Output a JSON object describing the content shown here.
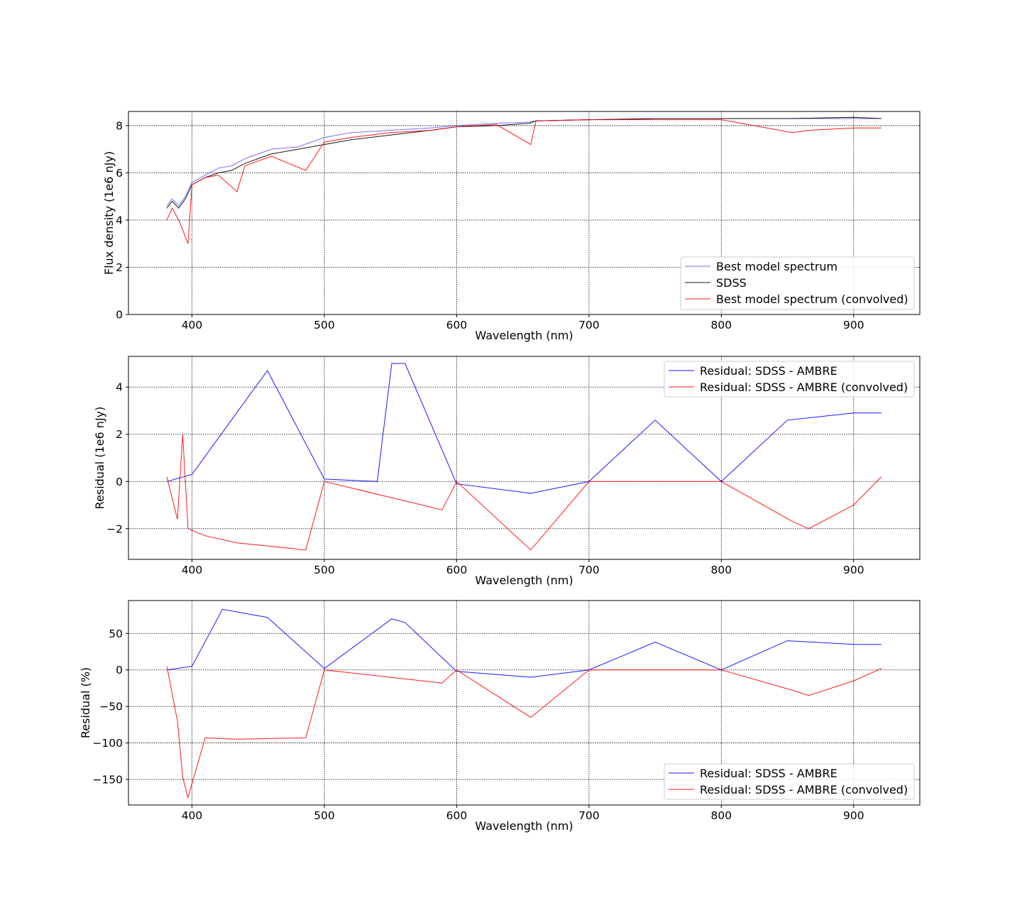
{
  "chart_data": [
    {
      "type": "line",
      "xlabel": "Wavelength (nm)",
      "ylabel": "Flux density (1e6 nJy)",
      "xlim": [
        352,
        950
      ],
      "ylim": [
        0,
        8.6
      ],
      "xticks": [
        400,
        500,
        600,
        700,
        800,
        900
      ],
      "yticks": [
        0,
        2,
        4,
        6,
        8
      ],
      "grid": true,
      "legend_position": "lower-right",
      "series": [
        {
          "name": "Best model spectrum",
          "color": "#0000ff",
          "x": [
            381,
            385,
            390,
            395,
            400,
            410,
            420,
            430,
            440,
            450,
            460,
            480,
            500,
            520,
            550,
            580,
            600,
            630,
            655,
            660,
            700,
            750,
            800,
            850,
            900,
            921
          ],
          "y": [
            4.6,
            4.9,
            4.6,
            5.0,
            5.6,
            5.9,
            6.2,
            6.3,
            6.6,
            6.8,
            7.0,
            7.1,
            7.5,
            7.7,
            7.8,
            7.9,
            8.0,
            8.1,
            8.15,
            8.2,
            8.25,
            8.3,
            8.3,
            8.3,
            8.3,
            8.3
          ]
        },
        {
          "name": "SDSS",
          "color": "#000000",
          "x": [
            381,
            385,
            390,
            395,
            400,
            410,
            420,
            430,
            440,
            450,
            460,
            480,
            500,
            520,
            550,
            580,
            600,
            630,
            655,
            660,
            700,
            750,
            800,
            850,
            900,
            921
          ],
          "y": [
            4.5,
            4.8,
            4.5,
            4.9,
            5.5,
            5.8,
            6.0,
            6.1,
            6.4,
            6.6,
            6.8,
            7.0,
            7.2,
            7.4,
            7.6,
            7.8,
            7.95,
            8.0,
            8.1,
            8.2,
            8.25,
            8.3,
            8.3,
            8.3,
            8.35,
            8.3
          ]
        },
        {
          "name": "Best model spectrum (convolved)",
          "color": "#ff0000",
          "x": [
            381,
            385,
            390,
            397,
            400,
            410,
            420,
            434,
            440,
            450,
            460,
            486,
            500,
            520,
            550,
            580,
            600,
            630,
            656,
            660,
            700,
            750,
            800,
            854,
            866,
            900,
            921
          ],
          "y": [
            4.0,
            4.5,
            4.0,
            3.0,
            5.5,
            5.8,
            5.9,
            5.2,
            6.3,
            6.5,
            6.7,
            6.1,
            7.3,
            7.5,
            7.7,
            7.8,
            7.95,
            8.05,
            7.2,
            8.2,
            8.25,
            8.25,
            8.25,
            7.7,
            7.8,
            7.9,
            7.9
          ]
        }
      ]
    },
    {
      "type": "line",
      "xlabel": "Wavelength (nm)",
      "ylabel": "Residual (1e6 nJy)",
      "xlim": [
        352,
        950
      ],
      "ylim": [
        -3.3,
        5.3
      ],
      "xticks": [
        400,
        500,
        600,
        700,
        800,
        900
      ],
      "yticks": [
        -2,
        0,
        2,
        4
      ],
      "grid": true,
      "legend_position": "upper-right",
      "series": [
        {
          "name": "Residual: SDSS - AMBRE",
          "color": "#0000ff",
          "x": [
            381,
            400,
            457,
            500,
            540,
            551,
            561,
            600,
            656,
            700,
            750,
            800,
            850,
            900,
            921
          ],
          "y": [
            0.0,
            0.3,
            4.7,
            0.1,
            0.0,
            5.0,
            5.0,
            -0.1,
            -0.5,
            0.0,
            2.6,
            0.0,
            2.6,
            2.9,
            2.9
          ]
        },
        {
          "name": "Residual: SDSS - AMBRE (convolved)",
          "color": "#ff0000",
          "x": [
            381,
            389,
            393,
            397,
            410,
            434,
            486,
            500,
            589,
            600,
            656,
            700,
            750,
            800,
            854,
            866,
            900,
            921
          ],
          "y": [
            0.2,
            -1.6,
            2.0,
            -2.0,
            -2.3,
            -2.6,
            -2.9,
            0.0,
            -1.2,
            0.0,
            -2.9,
            0.0,
            0.0,
            0.0,
            -1.7,
            -2.0,
            -1.0,
            0.2
          ]
        }
      ]
    },
    {
      "type": "line",
      "xlabel": "Wavelength (nm)",
      "ylabel": "Residual (%)",
      "xlim": [
        352,
        950
      ],
      "ylim": [
        -185,
        95
      ],
      "xticks": [
        400,
        500,
        600,
        700,
        800,
        900
      ],
      "yticks": [
        -150,
        -100,
        -50,
        0,
        50
      ],
      "grid": true,
      "legend_position": "lower-right",
      "series": [
        {
          "name": "Residual: SDSS - AMBRE",
          "color": "#0000ff",
          "x": [
            381,
            400,
            423,
            457,
            500,
            551,
            561,
            600,
            656,
            700,
            750,
            800,
            850,
            900,
            921
          ],
          "y": [
            0,
            5,
            83,
            72,
            2,
            70,
            65,
            -2,
            -10,
            0,
            38,
            0,
            40,
            35,
            35
          ]
        },
        {
          "name": "Residual: SDSS - AMBRE (convolved)",
          "color": "#ff0000",
          "x": [
            381,
            389,
            393,
            397,
            410,
            434,
            486,
            500,
            589,
            600,
            656,
            700,
            750,
            800,
            854,
            866,
            900,
            921
          ],
          "y": [
            5,
            -70,
            -147,
            -175,
            -93,
            -95,
            -93,
            0,
            -18,
            0,
            -65,
            0,
            0,
            0,
            -28,
            -35,
            -15,
            2
          ]
        }
      ]
    }
  ]
}
